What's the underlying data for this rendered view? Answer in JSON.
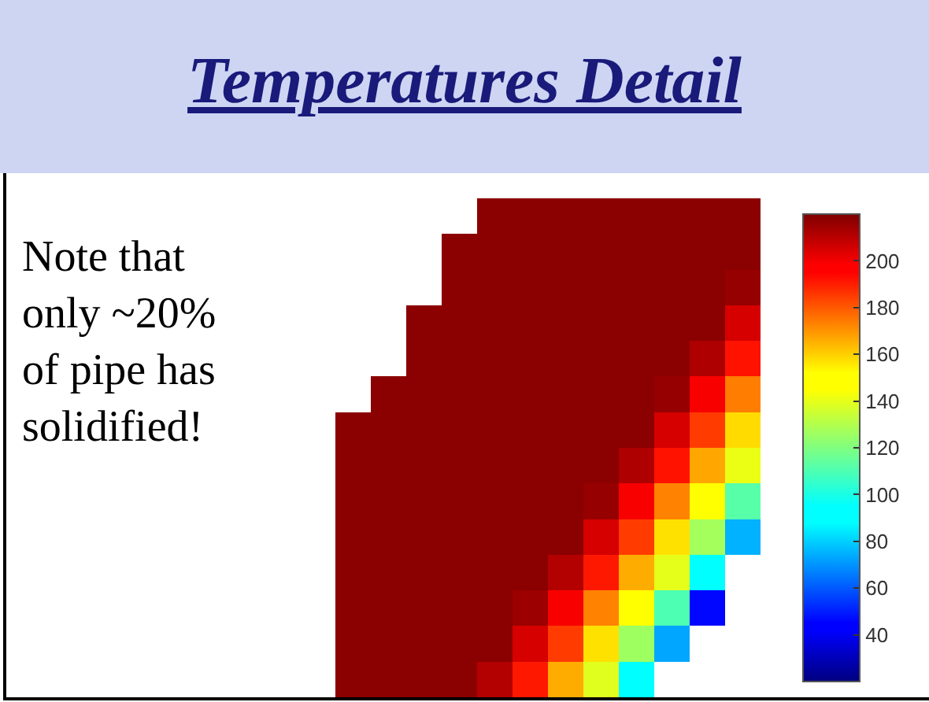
{
  "chart_data": {
    "type": "heatmap",
    "title": "Temperatures Detail",
    "annotations": [
      "Note that only ~20% of pipe has solidified!"
    ],
    "categories": [
      null,
      null,
      null,
      null,
      null,
      null,
      null,
      null,
      null,
      null,
      null,
      null
    ],
    "y_categories": [
      null,
      null,
      null,
      null,
      null,
      null,
      null,
      null,
      null,
      null,
      null,
      null,
      null,
      null
    ],
    "cells": [
      [
        null,
        null,
        null,
        null,
        218,
        218,
        218,
        218,
        218,
        218,
        218,
        218
      ],
      [
        null,
        null,
        null,
        218,
        218,
        218,
        218,
        218,
        218,
        218,
        218,
        218
      ],
      [
        null,
        null,
        null,
        218,
        218,
        218,
        218,
        218,
        218,
        218,
        218,
        216
      ],
      [
        null,
        null,
        218,
        218,
        218,
        218,
        218,
        218,
        218,
        218,
        218,
        205
      ],
      [
        null,
        null,
        218,
        218,
        218,
        218,
        218,
        218,
        218,
        218,
        212,
        192
      ],
      [
        null,
        218,
        218,
        218,
        218,
        218,
        218,
        218,
        218,
        216,
        199,
        174
      ],
      [
        218,
        218,
        218,
        218,
        218,
        218,
        218,
        218,
        218,
        205,
        185,
        158
      ],
      [
        218,
        218,
        218,
        218,
        218,
        218,
        218,
        218,
        212,
        192,
        167,
        141
      ],
      [
        218,
        218,
        218,
        218,
        218,
        218,
        218,
        216,
        199,
        173,
        150,
        112
      ],
      [
        218,
        218,
        218,
        218,
        218,
        218,
        218,
        205,
        185,
        157,
        127,
        75
      ],
      [
        218,
        218,
        218,
        218,
        218,
        218,
        211,
        191,
        166,
        140,
        93,
        null
      ],
      [
        218,
        218,
        218,
        218,
        218,
        215,
        199,
        173,
        150,
        110,
        46,
        null
      ],
      [
        218,
        218,
        218,
        218,
        218,
        205,
        185,
        157,
        126,
        73,
        null,
        null
      ],
      [
        218,
        218,
        218,
        218,
        211,
        191,
        166,
        139,
        92,
        null,
        null,
        null
      ]
    ],
    "clim": [
      20,
      220
    ],
    "cticks": [
      40,
      60,
      80,
      100,
      120,
      140,
      160,
      180,
      200
    ]
  }
}
